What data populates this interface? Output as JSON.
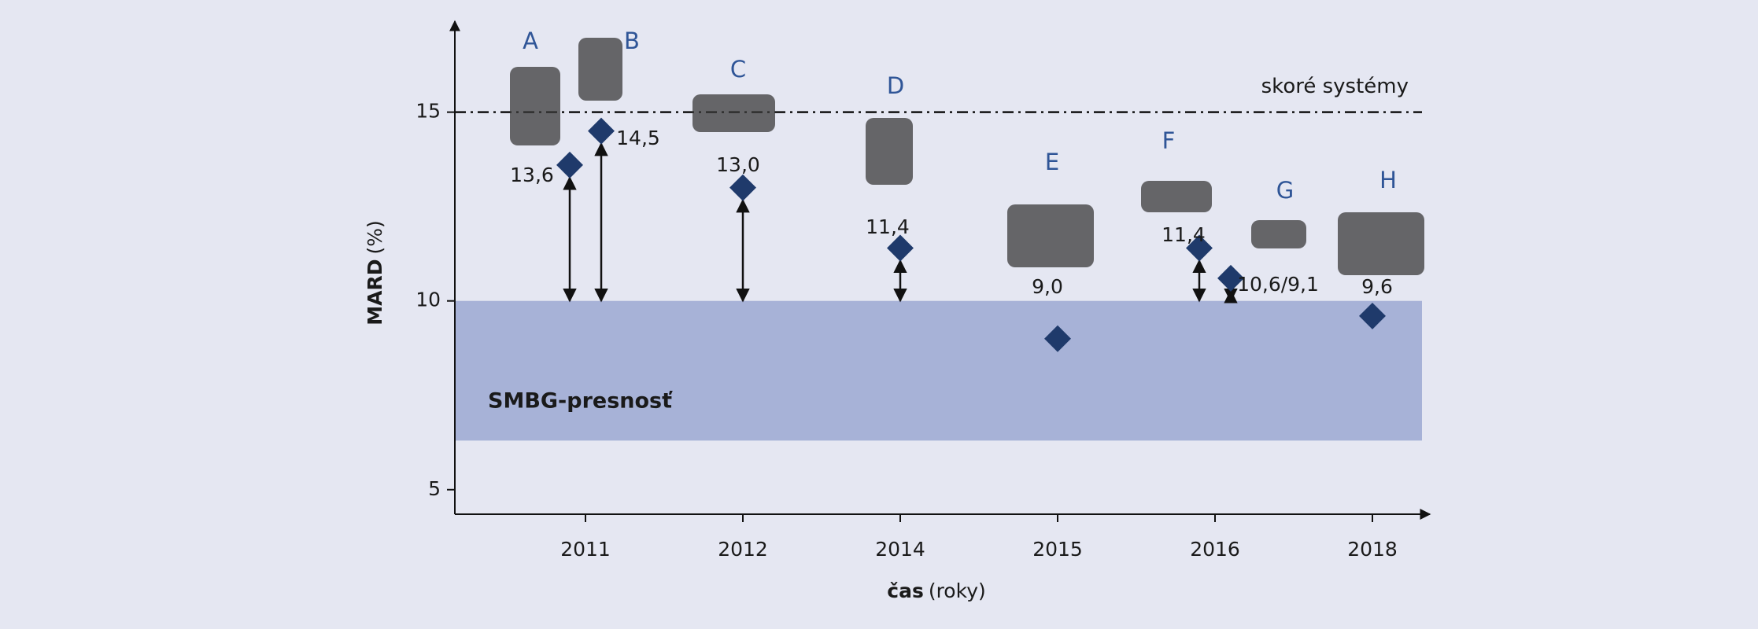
{
  "chart_data": {
    "type": "scatter",
    "ylabel": {
      "bold": "MARD",
      "text": "(%)"
    },
    "xlabel": {
      "bold": "čas",
      "text": "(roky)"
    },
    "categories": [
      "2011",
      "2012",
      "2014",
      "2015",
      "2016",
      "2018"
    ],
    "series": [
      {
        "name": "MARD",
        "color": "#1f3a6b",
        "point_names": [
          "A",
          "B",
          "C",
          "D",
          "E",
          "F",
          "G",
          "H"
        ],
        "x": [
          "2011",
          "2011",
          "2012",
          "2014",
          "2015",
          "2016",
          "2016",
          "2018"
        ],
        "values": [
          13.6,
          14.5,
          13.0,
          11.4,
          9.0,
          11.4,
          10.6,
          9.6
        ],
        "value_labels": [
          "13,6",
          "14,5",
          "13,0",
          "11,4",
          "9,0",
          "11,4",
          "10,6/9,1",
          "9,6"
        ]
      }
    ],
    "ylim": [
      4.35,
      17.2
    ],
    "yticks": [
      5,
      10,
      15
    ],
    "reference_line": {
      "value": 15,
      "label": "skoré systémy"
    },
    "band": {
      "range": [
        6.3,
        10
      ],
      "label": "SMBG-presnosť",
      "color": "#a7b2d7"
    }
  }
}
